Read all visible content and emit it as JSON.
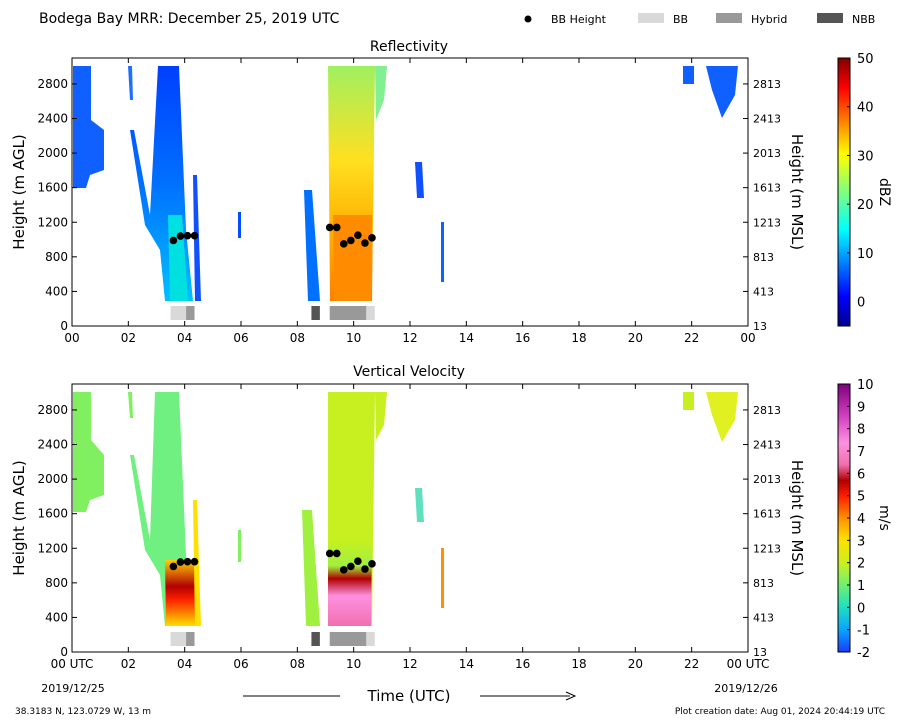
{
  "header": {
    "title": "Bodega Bay MRR:  December 25, 2019 UTC",
    "legend": [
      {
        "label": "BB Height",
        "symbol": "dot",
        "color": "#000000"
      },
      {
        "label": "BB",
        "symbol": "swatch",
        "color": "#d9d9d9"
      },
      {
        "label": "Hybrid",
        "symbol": "swatch",
        "color": "#999999"
      },
      {
        "label": "NBB",
        "symbol": "swatch",
        "color": "#555555"
      }
    ]
  },
  "footer": {
    "location": "38.3183 N, 123.0729 W, 13 m",
    "creation": "Plot creation date: Aug 01, 2024 20:44:19 UTC",
    "xlabel": "Time (UTC)",
    "start_date": "2019/12/25",
    "end_date": "2019/12/26"
  },
  "chart_data": [
    {
      "type": "heatmap",
      "title": "Reflectivity",
      "xlabel": "",
      "ylabel": "Height (m AGL)",
      "ylabel_right": "Height (m MSL)",
      "xlim": [
        0,
        24
      ],
      "ylim": [
        0,
        3100
      ],
      "x_ticks": [
        "00",
        "02",
        "04",
        "06",
        "08",
        "10",
        "12",
        "14",
        "16",
        "18",
        "20",
        "22",
        "00"
      ],
      "y_ticks": [
        0,
        400,
        800,
        1200,
        1600,
        2000,
        2400,
        2800
      ],
      "y_ticks_right": [
        13,
        413,
        813,
        1213,
        1613,
        2013,
        2413,
        2813
      ],
      "colorbar": {
        "label": "dBZ",
        "min": -5,
        "max": 50,
        "ticks": [
          0,
          10,
          20,
          30,
          40,
          50
        ],
        "scale": "jet"
      },
      "series": [
        {
          "name": "BB Height",
          "type": "scatter",
          "x": [
            3.6,
            3.85,
            4.1,
            4.35
          ],
          "y": [
            990,
            1040,
            1045,
            1045
          ]
        },
        {
          "name": "BB Height",
          "type": "scatter",
          "x": [
            9.15,
            9.4,
            9.65,
            9.9,
            10.15,
            10.4,
            10.65
          ],
          "y": [
            1140,
            1140,
            950,
            990,
            1050,
            960,
            1020
          ]
        }
      ],
      "bb_classification": [
        {
          "label": "BB",
          "start": 3.5,
          "end": 4.05
        },
        {
          "label": "Hybrid",
          "start": 4.05,
          "end": 4.35
        },
        {
          "label": "NBB",
          "start": 8.5,
          "end": 8.8
        },
        {
          "label": "Hybrid",
          "start": 9.15,
          "end": 10.45
        },
        {
          "label": "BB",
          "start": 10.45,
          "end": 10.75
        }
      ]
    },
    {
      "type": "heatmap",
      "title": "Vertical Velocity",
      "xlabel": "Time (UTC)",
      "ylabel": "Height (m AGL)",
      "ylabel_right": "Height (m MSL)",
      "xlim": [
        0,
        24
      ],
      "ylim": [
        0,
        3100
      ],
      "x_ticks": [
        "00 UTC",
        "02",
        "04",
        "06",
        "08",
        "10",
        "12",
        "14",
        "16",
        "18",
        "20",
        "22",
        "00 UTC"
      ],
      "y_ticks": [
        0,
        400,
        800,
        1200,
        1600,
        2000,
        2400,
        2800
      ],
      "y_ticks_right": [
        13,
        413,
        813,
        1213,
        1613,
        2013,
        2413,
        2813
      ],
      "colorbar": {
        "label": "m/s",
        "min": -2,
        "max": 10,
        "ticks": [
          -2,
          -1,
          0,
          1,
          2,
          3,
          4,
          5,
          6,
          7,
          8,
          9,
          10
        ],
        "scale": "velocity"
      },
      "series": [
        {
          "name": "BB Height",
          "type": "scatter",
          "x": [
            3.6,
            3.85,
            4.1,
            4.35
          ],
          "y": [
            990,
            1040,
            1045,
            1045
          ]
        },
        {
          "name": "BB Height",
          "type": "scatter",
          "x": [
            9.15,
            9.4,
            9.65,
            9.9,
            10.15,
            10.4,
            10.65
          ],
          "y": [
            1140,
            1140,
            950,
            990,
            1050,
            960,
            1020
          ]
        }
      ],
      "bb_classification": [
        {
          "label": "BB",
          "start": 3.5,
          "end": 4.05
        },
        {
          "label": "Hybrid",
          "start": 4.05,
          "end": 4.35
        },
        {
          "label": "NBB",
          "start": 8.5,
          "end": 8.8
        },
        {
          "label": "Hybrid",
          "start": 9.15,
          "end": 10.45
        },
        {
          "label": "BB",
          "start": 10.45,
          "end": 10.75
        }
      ]
    }
  ]
}
